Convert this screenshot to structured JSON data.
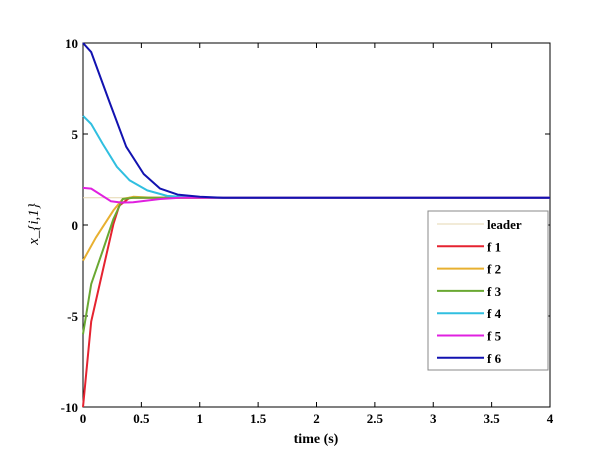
{
  "chart_data": {
    "type": "line",
    "title": "",
    "xlabel": "time (s)",
    "ylabel": "x_{i,1}",
    "xlim": [
      0,
      4
    ],
    "ylim": [
      -10,
      10
    ],
    "xticks": [
      "0",
      "0.5",
      "1",
      "1.5",
      "2",
      "2.5",
      "3",
      "3.5",
      "4"
    ],
    "yticks": [
      "-10",
      "-5",
      "0",
      "5",
      "10"
    ],
    "grid": false,
    "legend_position": "right-middle",
    "series": [
      {
        "name": "leader",
        "color": "#e6d7b0",
        "points": [
          [
            0,
            1.5
          ],
          [
            4,
            1.5
          ]
        ]
      },
      {
        "name": "f 1",
        "color": "#e52330",
        "points": [
          [
            0,
            -10
          ],
          [
            0.07,
            -5.3
          ],
          [
            0.17,
            -2.5
          ],
          [
            0.26,
            0.05
          ],
          [
            0.31,
            1.06
          ],
          [
            0.4,
            1.5
          ],
          [
            4,
            1.5
          ]
        ]
      },
      {
        "name": "f 2",
        "color": "#e8b030",
        "points": [
          [
            0,
            -1.96
          ],
          [
            0.11,
            -0.7
          ],
          [
            0.26,
            0.8
          ],
          [
            0.34,
            1.43
          ],
          [
            0.43,
            1.55
          ],
          [
            0.6,
            1.5
          ],
          [
            4,
            1.5
          ]
        ]
      },
      {
        "name": "f 3",
        "color": "#6aa832",
        "points": [
          [
            0,
            -6
          ],
          [
            0.07,
            -3.25
          ],
          [
            0.17,
            -1.4
          ],
          [
            0.26,
            0.33
          ],
          [
            0.34,
            1.43
          ],
          [
            0.43,
            1.5
          ],
          [
            4,
            1.5
          ]
        ]
      },
      {
        "name": "f 4",
        "color": "#30bfe0",
        "points": [
          [
            0,
            6
          ],
          [
            0.07,
            5.55
          ],
          [
            0.17,
            4.45
          ],
          [
            0.29,
            3.2
          ],
          [
            0.4,
            2.45
          ],
          [
            0.55,
            1.9
          ],
          [
            0.72,
            1.6
          ],
          [
            0.9,
            1.53
          ],
          [
            1.1,
            1.5
          ],
          [
            4,
            1.5
          ]
        ]
      },
      {
        "name": "f 5",
        "color": "#e020e0",
        "points": [
          [
            0,
            2.04
          ],
          [
            0.07,
            2.0
          ],
          [
            0.24,
            1.3
          ],
          [
            0.33,
            1.23
          ],
          [
            0.43,
            1.25
          ],
          [
            0.66,
            1.43
          ],
          [
            0.83,
            1.5
          ],
          [
            4,
            1.5
          ]
        ]
      },
      {
        "name": "f 6",
        "color": "#1212b0",
        "points": [
          [
            0,
            10
          ],
          [
            0.07,
            9.5
          ],
          [
            0.23,
            6.7
          ],
          [
            0.37,
            4.3
          ],
          [
            0.52,
            2.8
          ],
          [
            0.66,
            2.0
          ],
          [
            0.81,
            1.67
          ],
          [
            1.0,
            1.55
          ],
          [
            1.2,
            1.5
          ],
          [
            4,
            1.5
          ]
        ]
      }
    ]
  }
}
